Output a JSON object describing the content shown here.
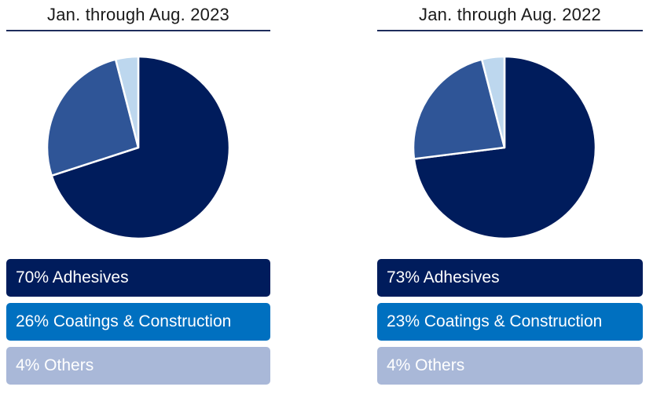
{
  "colors": {
    "adhesives": "#001c5c",
    "coatings_pie": "#2f5597",
    "coatings_legend": "#0070c0",
    "others_pie": "#bdd7ee",
    "others_legend": "#a9b8d8",
    "rule": "#1f2d5c"
  },
  "chart_data": [
    {
      "type": "pie",
      "title": "Jan. through Aug. 2023",
      "categories": [
        "Adhesives",
        "Coatings & Construction",
        "Others"
      ],
      "values": [
        70,
        26,
        4
      ],
      "legend_labels": [
        "70% Adhesives",
        "26% Coatings & Construction",
        "4% Others"
      ],
      "legend_placement": "bottom"
    },
    {
      "type": "pie",
      "title": "Jan. through Aug. 2022",
      "categories": [
        "Adhesives",
        "Coatings & Construction",
        "Others"
      ],
      "values": [
        73,
        23,
        4
      ],
      "legend_labels": [
        "73% Adhesives",
        "23% Coatings & Construction",
        "4% Others"
      ],
      "legend_placement": "bottom"
    }
  ]
}
